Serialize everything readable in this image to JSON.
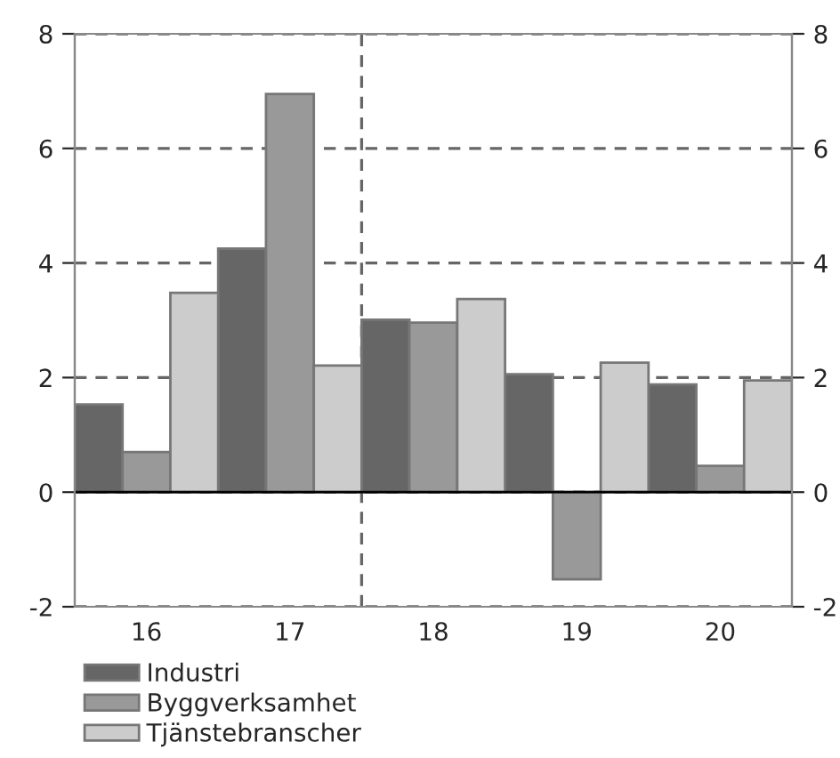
{
  "chart_data": {
    "type": "bar",
    "x": [
      16,
      17,
      18,
      19,
      20
    ],
    "series": [
      {
        "name": "Industri",
        "color": "#666666",
        "values": [
          1.53,
          4.25,
          3.01,
          2.06,
          1.88
        ]
      },
      {
        "name": "Byggverksamhet",
        "color": "#999999",
        "values": [
          0.7,
          6.95,
          2.96,
          -1.52,
          0.46
        ]
      },
      {
        "name": "Tjänstebranscher",
        "color": "#cccccc",
        "values": [
          3.48,
          2.21,
          3.37,
          2.26,
          1.95
        ]
      }
    ],
    "xlim": [
      15.5,
      20.5
    ],
    "xticks": [
      16,
      17,
      18,
      19,
      20
    ],
    "ylim": [
      -2,
      8
    ],
    "yticks": [
      -2,
      0,
      2,
      4,
      6,
      8
    ],
    "y2lim": [
      -2,
      8
    ],
    "y2ticks": [
      -2,
      0,
      2,
      4,
      6,
      8
    ],
    "ref_lines": [
      {
        "axis": "x",
        "value": 17.5,
        "color": "#666666",
        "line_style": "dashed"
      }
    ],
    "grid": "y",
    "legend": "bottom"
  }
}
